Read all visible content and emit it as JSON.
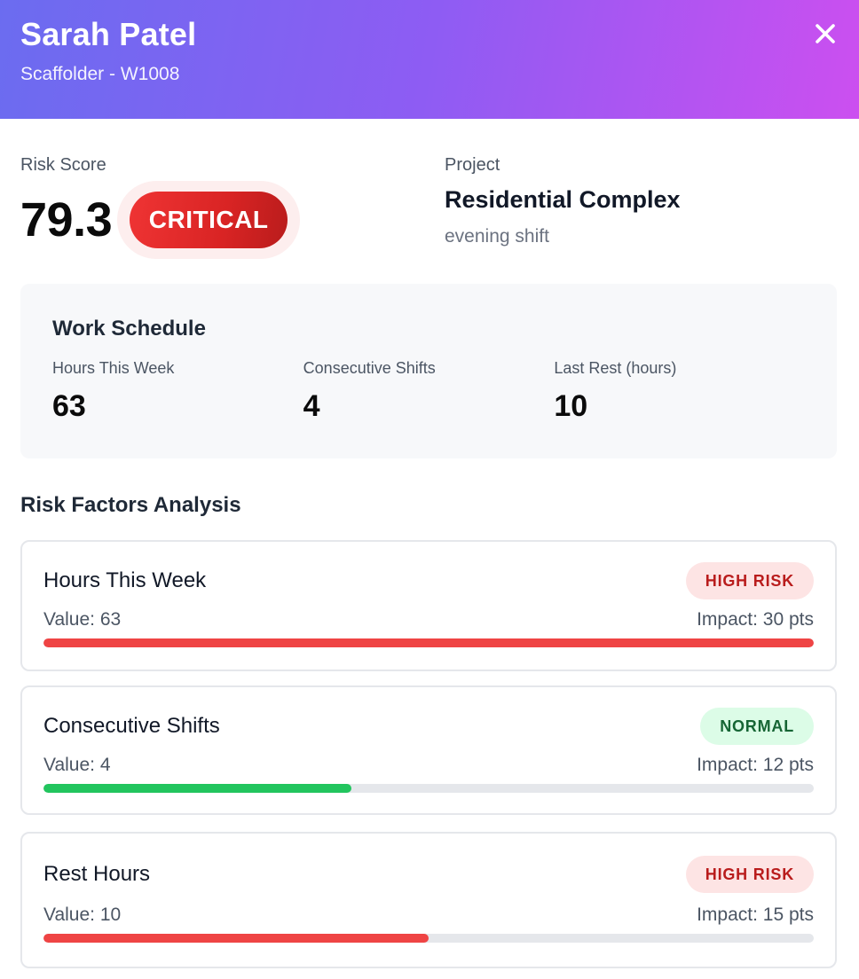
{
  "header": {
    "name": "Sarah Patel",
    "role": "Scaffolder - W1008",
    "close_icon": "close-icon"
  },
  "summary": {
    "risk_label": "Risk Score",
    "risk_score": "79.3",
    "risk_level": "CRITICAL",
    "project_label": "Project",
    "project_name": "Residential Complex",
    "shift": "evening shift"
  },
  "schedule": {
    "title": "Work Schedule",
    "stats": [
      {
        "label": "Hours This Week",
        "value": "63"
      },
      {
        "label": "Consecutive Shifts",
        "value": "4"
      },
      {
        "label": "Last Rest (hours)",
        "value": "10"
      }
    ]
  },
  "risk_factors": {
    "title": "Risk Factors Analysis",
    "items": [
      {
        "name": "Hours This Week",
        "status": "HIGH RISK",
        "value": "Value: 63",
        "impact": "Impact: 30 pts",
        "progress": 1.0,
        "color": "#ef4444"
      },
      {
        "name": "Consecutive Shifts",
        "status": "NORMAL",
        "value": "Value: 4",
        "impact": "Impact: 12 pts",
        "progress": 0.4,
        "color": "#22c55e"
      },
      {
        "name": "Rest Hours",
        "status": "HIGH RISK",
        "value": "Value: 10",
        "impact": "Impact: 15 pts",
        "progress": 0.5,
        "color": "#ef4444"
      }
    ]
  },
  "colors": {
    "header_gradient_start": "#6b6cf0",
    "header_gradient_end": "#cc4ff0",
    "critical": "#dc2626",
    "high_risk_bar": "#ef4444",
    "normal_bar": "#22c55e"
  }
}
